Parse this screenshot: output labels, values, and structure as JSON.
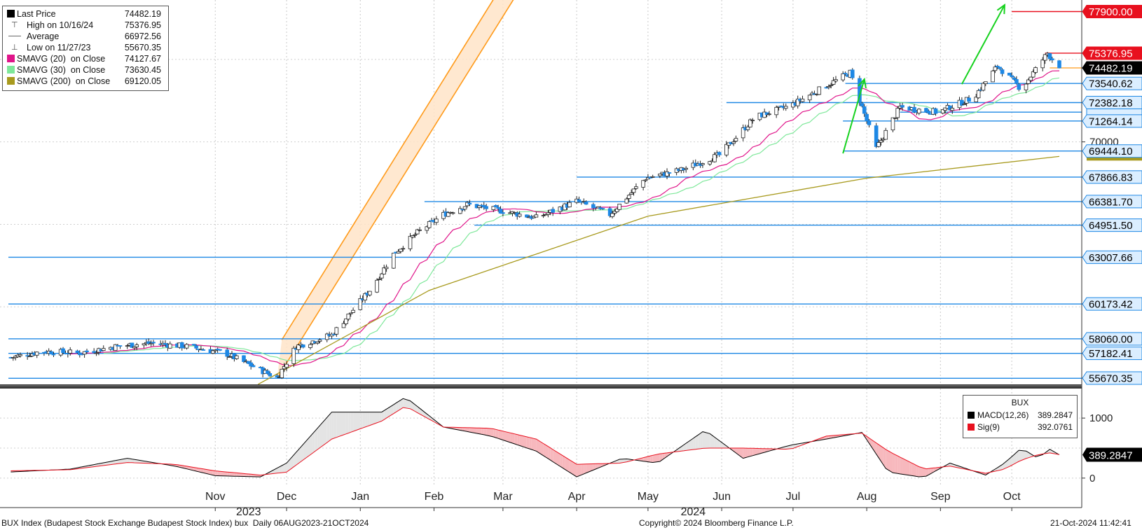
{
  "legend": {
    "items": [
      {
        "label": "Last Price",
        "value": "74482.19",
        "marker": "black-square"
      },
      {
        "label": "High on 10/16/24",
        "value": "75376.95",
        "marker": "high-pin"
      },
      {
        "label": "Average",
        "value": "66972.56",
        "marker": "average-line"
      },
      {
        "label": "Low on 11/27/23",
        "value": "55670.35",
        "marker": "low-pin"
      },
      {
        "label": "SMAVG (20)  on Close",
        "value": "74127.67",
        "marker": "square",
        "color": "#e0158a"
      },
      {
        "label": "SMAVG (30)  on Close",
        "value": "73630.45",
        "marker": "square",
        "color": "#7ee89a"
      },
      {
        "label": "SMAVG (200)  on Close",
        "value": "69120.05",
        "marker": "square",
        "color": "#a89a1e"
      }
    ]
  },
  "macd_legend": {
    "title": "BUX",
    "items": [
      {
        "label": "MACD(12,26)",
        "value": "389.2847",
        "color": "#000000"
      },
      {
        "label": "Sig(9)",
        "value": "392.0761",
        "color": "#e8101e"
      }
    ]
  },
  "footer": {
    "left": "BUX Index (Budapest Stock Exchange Budapest Stock Index) bux  Daily 06AUG2023-21OCT2024",
    "center": "Copyright© 2024 Bloomberg Finance L.P.",
    "right": "21-Oct-2024 11:42:41"
  },
  "colors": {
    "up": "#ffffff",
    "down": "#1e88e5",
    "level": "#1e88e5",
    "sma20": "#e0158a",
    "sma30": "#7ee89a",
    "sma200": "#a89a1e",
    "channel": "#ff9a1a",
    "arrow": "#17d21f",
    "resistance": "#e8101e",
    "macd": "#000000",
    "signal": "#e8101e"
  },
  "chart_data": [
    {
      "type": "candlestick",
      "y_axis_side": "right",
      "ylim": [
        55300,
        78600
      ],
      "x_tick_labels": [
        "Nov",
        "Dec",
        "Jan",
        "Feb",
        "Mar",
        "Apr",
        "May",
        "Jun",
        "Jul",
        "Aug",
        "Sep",
        "Oct"
      ],
      "x_tick_dates": [
        "2023-11-01",
        "2023-12-01",
        "2024-01-01",
        "2024-02-01",
        "2024-03-01",
        "2024-04-01",
        "2024-05-01",
        "2024-06-01",
        "2024-07-01",
        "2024-08-01",
        "2024-09-01",
        "2024-10-01"
      ],
      "year_labels": [
        {
          "text": "2023",
          "date": "2023-11-15"
        },
        {
          "text": "2024",
          "date": "2024-05-20"
        }
      ],
      "y_tick_label": {
        "text": "70000",
        "value": 70000
      },
      "price_labels": [
        {
          "text": "77900.00",
          "value": 77900,
          "style": "red"
        },
        {
          "text": "75376.95",
          "value": 75376.95,
          "style": "red"
        },
        {
          "text": "74482.19",
          "value": 74482.19,
          "style": "black"
        },
        {
          "text": "73540.62",
          "value": 73540.62,
          "style": "blue"
        },
        {
          "text": "72382.18",
          "value": 72382.18,
          "style": "blue"
        },
        {
          "text": "71264.14",
          "value": 71264.14,
          "style": "blue"
        },
        {
          "text": "69444.10",
          "value": 69444.1,
          "style": "blue"
        },
        {
          "text": "67866.83",
          "value": 67866.83,
          "style": "blue"
        },
        {
          "text": "66381.70",
          "value": 66381.7,
          "style": "blue"
        },
        {
          "text": "64951.50",
          "value": 64951.5,
          "style": "blue"
        },
        {
          "text": "63007.66",
          "value": 63007.66,
          "style": "blue"
        },
        {
          "text": "60173.42",
          "value": 60173.42,
          "style": "blue"
        },
        {
          "text": "58060.00",
          "value": 58060,
          "style": "blue"
        },
        {
          "text": "57182.41",
          "value": 57182.41,
          "style": "blue"
        },
        {
          "text": "55670.35",
          "value": 55670.35,
          "style": "blue"
        }
      ],
      "horizontal_levels": [
        {
          "value": 73540.62,
          "from": "2024-07-23"
        },
        {
          "value": 72382.18,
          "from": "2024-06-03"
        },
        {
          "value": 71800,
          "from": "2024-08-15"
        },
        {
          "value": 71264.14,
          "from": "2024-07-22"
        },
        {
          "value": 69444.1,
          "from": "2024-07-22"
        },
        {
          "value": 67866.83,
          "from": "2024-04-01"
        },
        {
          "value": 66381.7,
          "from": "2024-01-28"
        },
        {
          "value": 64951.5,
          "from": "2024-02-18"
        },
        {
          "value": 63007.66,
          "from": "2023-08-06"
        },
        {
          "value": 60173.42,
          "from": "2023-08-06"
        },
        {
          "value": 58060,
          "from": "2023-08-06"
        },
        {
          "value": 57182.41,
          "from": "2023-08-06"
        },
        {
          "value": 55670.35,
          "from": "2023-08-06"
        }
      ],
      "resistance_lines": [
        {
          "value": 77900,
          "from": "2024-10-01",
          "to": "2024-10-21"
        },
        {
          "value": 75376.95,
          "from": "2024-10-15",
          "to": "2024-10-21"
        }
      ],
      "last_price_line": {
        "value": 74482.19,
        "from": "2024-10-17",
        "to": "2024-10-21"
      },
      "channel": {
        "upper": [
          [
            "2023-11-29",
            58000
          ],
          [
            "2024-04-15",
            90000
          ]
        ],
        "lower": [
          [
            "2023-11-27",
            55670
          ],
          [
            "2024-04-15",
            88000
          ]
        ]
      },
      "arrows": [
        {
          "from": [
            "2024-07-22",
            69300
          ],
          "to": [
            "2024-07-31",
            73800
          ]
        },
        {
          "from": [
            "2024-09-10",
            73500
          ],
          "to": [
            "2024-09-28",
            78300
          ]
        }
      ],
      "sma200": [
        [
          "2023-11-19",
          55300
        ],
        [
          "2024-01-30",
          61000
        ],
        [
          "2024-05-01",
          65500
        ],
        [
          "2024-08-01",
          67800
        ],
        [
          "2024-10-21",
          69120
        ]
      ],
      "series_waypoints": [
        [
          "2023-08-06",
          56900
        ],
        [
          "2023-08-20",
          57300
        ],
        [
          "2023-09-05",
          57200
        ],
        [
          "2023-09-20",
          57600
        ],
        [
          "2023-10-05",
          57800
        ],
        [
          "2023-10-20",
          57600
        ],
        [
          "2023-11-05",
          57200
        ],
        [
          "2023-11-27",
          55700
        ],
        [
          "2023-12-05",
          57600
        ],
        [
          "2023-12-20",
          58300
        ],
        [
          "2024-01-05",
          61000
        ],
        [
          "2024-01-15",
          63200
        ],
        [
          "2024-01-25",
          64500
        ],
        [
          "2024-02-05",
          65600
        ],
        [
          "2024-02-15",
          66200
        ],
        [
          "2024-03-01",
          65800
        ],
        [
          "2024-03-15",
          65400
        ],
        [
          "2024-04-01",
          66400
        ],
        [
          "2024-04-15",
          65600
        ],
        [
          "2024-04-30",
          67800
        ],
        [
          "2024-05-15",
          68300
        ],
        [
          "2024-05-31",
          69200
        ],
        [
          "2024-06-15",
          71500
        ],
        [
          "2024-06-30",
          72200
        ],
        [
          "2024-07-15",
          73400
        ],
        [
          "2024-07-25",
          74200
        ],
        [
          "2024-08-05",
          69600
        ],
        [
          "2024-08-15",
          72100
        ],
        [
          "2024-08-31",
          71800
        ],
        [
          "2024-09-15",
          72700
        ],
        [
          "2024-09-25",
          74600
        ],
        [
          "2024-10-05",
          73200
        ],
        [
          "2024-10-16",
          75376
        ],
        [
          "2024-10-21",
          74482
        ]
      ]
    },
    {
      "type": "line",
      "name": "MACD panel",
      "ylim": [
        -130,
        1480
      ],
      "y_ticks": [
        {
          "text": "1000",
          "value": 1000
        },
        {
          "text": "0",
          "value": 0
        }
      ],
      "value_label": {
        "text": "389.2847",
        "value": 389.2847
      },
      "macd_waypoints": [
        [
          "2023-08-06",
          100
        ],
        [
          "2023-09-01",
          150
        ],
        [
          "2023-09-25",
          330
        ],
        [
          "2023-10-15",
          200
        ],
        [
          "2023-11-01",
          40
        ],
        [
          "2023-11-20",
          20
        ],
        [
          "2023-12-01",
          250
        ],
        [
          "2023-12-20",
          1100
        ],
        [
          "2024-01-10",
          1100
        ],
        [
          "2024-01-20",
          1350
        ],
        [
          "2024-02-05",
          850
        ],
        [
          "2024-02-25",
          700
        ],
        [
          "2024-03-15",
          450
        ],
        [
          "2024-04-01",
          20
        ],
        [
          "2024-04-20",
          330
        ],
        [
          "2024-05-05",
          250
        ],
        [
          "2024-05-25",
          800
        ],
        [
          "2024-06-10",
          330
        ],
        [
          "2024-06-30",
          550
        ],
        [
          "2024-07-15",
          650
        ],
        [
          "2024-07-30",
          760
        ],
        [
          "2024-08-10",
          100
        ],
        [
          "2024-08-25",
          10
        ],
        [
          "2024-09-05",
          250
        ],
        [
          "2024-09-20",
          50
        ],
        [
          "2024-09-28",
          250
        ],
        [
          "2024-10-05",
          500
        ],
        [
          "2024-10-12",
          330
        ],
        [
          "2024-10-17",
          480
        ],
        [
          "2024-10-21",
          389
        ]
      ],
      "signal_waypoints": [
        [
          "2023-08-06",
          120
        ],
        [
          "2023-09-01",
          140
        ],
        [
          "2023-09-25",
          260
        ],
        [
          "2023-10-15",
          230
        ],
        [
          "2023-11-01",
          120
        ],
        [
          "2023-11-20",
          50
        ],
        [
          "2023-12-01",
          100
        ],
        [
          "2023-12-20",
          650
        ],
        [
          "2024-01-10",
          950
        ],
        [
          "2024-01-20",
          1200
        ],
        [
          "2024-02-05",
          850
        ],
        [
          "2024-02-25",
          830
        ],
        [
          "2024-03-15",
          650
        ],
        [
          "2024-04-01",
          230
        ],
        [
          "2024-04-20",
          250
        ],
        [
          "2024-05-05",
          400
        ],
        [
          "2024-05-25",
          500
        ],
        [
          "2024-06-10",
          500
        ],
        [
          "2024-06-30",
          480
        ],
        [
          "2024-07-15",
          700
        ],
        [
          "2024-07-30",
          750
        ],
        [
          "2024-08-10",
          450
        ],
        [
          "2024-08-25",
          150
        ],
        [
          "2024-09-05",
          200
        ],
        [
          "2024-09-20",
          80
        ],
        [
          "2024-09-28",
          150
        ],
        [
          "2024-10-05",
          300
        ],
        [
          "2024-10-12",
          390
        ],
        [
          "2024-10-17",
          420
        ],
        [
          "2024-10-21",
          392
        ]
      ]
    }
  ]
}
